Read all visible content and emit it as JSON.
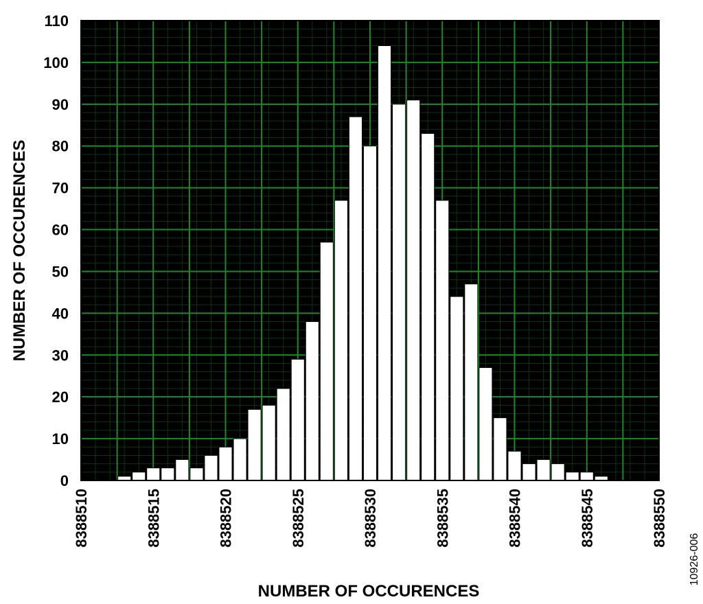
{
  "chart_data": {
    "type": "bar",
    "xlabel": "NUMBER OF OCCURENCES",
    "ylabel": "NUMBER OF OCCURENCES",
    "xlim": [
      8388510,
      8388550
    ],
    "ylim": [
      0,
      110
    ],
    "x_ticks": [
      8388510,
      8388515,
      8388520,
      8388525,
      8388530,
      8388535,
      8388540,
      8388545,
      8388550
    ],
    "y_ticks": [
      0,
      10,
      20,
      30,
      40,
      50,
      60,
      70,
      80,
      90,
      100,
      110
    ],
    "grid": true,
    "x": [
      8388513,
      8388514,
      8388515,
      8388516,
      8388517,
      8388518,
      8388519,
      8388520,
      8388521,
      8388522,
      8388523,
      8388524,
      8388525,
      8388526,
      8388527,
      8388528,
      8388529,
      8388530,
      8388531,
      8388532,
      8388533,
      8388534,
      8388535,
      8388536,
      8388537,
      8388538,
      8388539,
      8388540,
      8388541,
      8388542,
      8388543,
      8388544,
      8388545,
      8388546
    ],
    "values": [
      1,
      2,
      3,
      3,
      5,
      3,
      6,
      8,
      10,
      17,
      18,
      22,
      29,
      38,
      57,
      67,
      87,
      80,
      104,
      90,
      91,
      83,
      67,
      44,
      47,
      27,
      15,
      7,
      4,
      5,
      4,
      2,
      2,
      1
    ],
    "colors": {
      "plot_bg": "#000000",
      "grid_major": "#1d8a2a",
      "grid_minor": "#0c3512",
      "bar": "#ffffff",
      "bar_edge": "#000000"
    }
  },
  "figure_id": "10926-006"
}
